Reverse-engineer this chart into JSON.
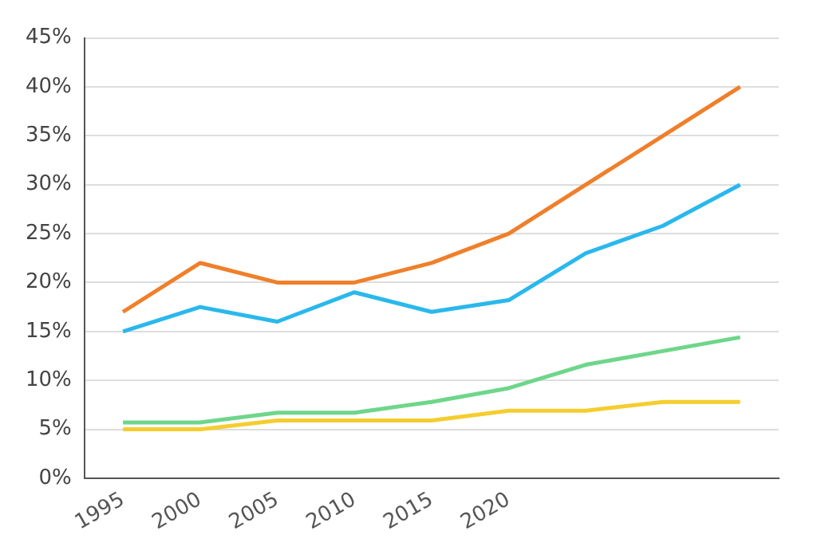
{
  "chart_data": {
    "type": "line",
    "categories": [
      "1995",
      "2000",
      "2005",
      "2010",
      "2015",
      "2020",
      null,
      null,
      null
    ],
    "series": [
      {
        "color": "#f07f2a",
        "values": [
          17,
          22,
          20,
          20,
          22,
          25,
          30,
          35,
          40
        ]
      },
      {
        "color": "#2ab8ec",
        "values": [
          15,
          17.5,
          16,
          19,
          17,
          18.2,
          23,
          25.8,
          30
        ]
      },
      {
        "color": "#6ed68a",
        "values": [
          5.7,
          5.7,
          6.7,
          6.7,
          7.8,
          9.2,
          11.6,
          13,
          14.4
        ]
      },
      {
        "color": "#f5cd2e",
        "values": [
          5,
          5,
          5.9,
          5.9,
          5.9,
          6.9,
          6.9,
          7.8,
          7.8
        ]
      }
    ],
    "ylim": [
      0,
      45
    ],
    "yticks": [
      {
        "value": 0,
        "label": "0%"
      },
      {
        "value": 5,
        "label": "5%"
      },
      {
        "value": 10,
        "label": "10%"
      },
      {
        "value": 15,
        "label": "15%"
      },
      {
        "value": 20,
        "label": "20%"
      },
      {
        "value": 25,
        "label": "25%"
      },
      {
        "value": 30,
        "label": "30%"
      },
      {
        "value": 35,
        "label": "35%"
      },
      {
        "value": 40,
        "label": "40%"
      },
      {
        "value": 45,
        "label": "45%"
      }
    ],
    "grid": "y",
    "legend": false,
    "marker": "none",
    "line_style": "solid"
  }
}
